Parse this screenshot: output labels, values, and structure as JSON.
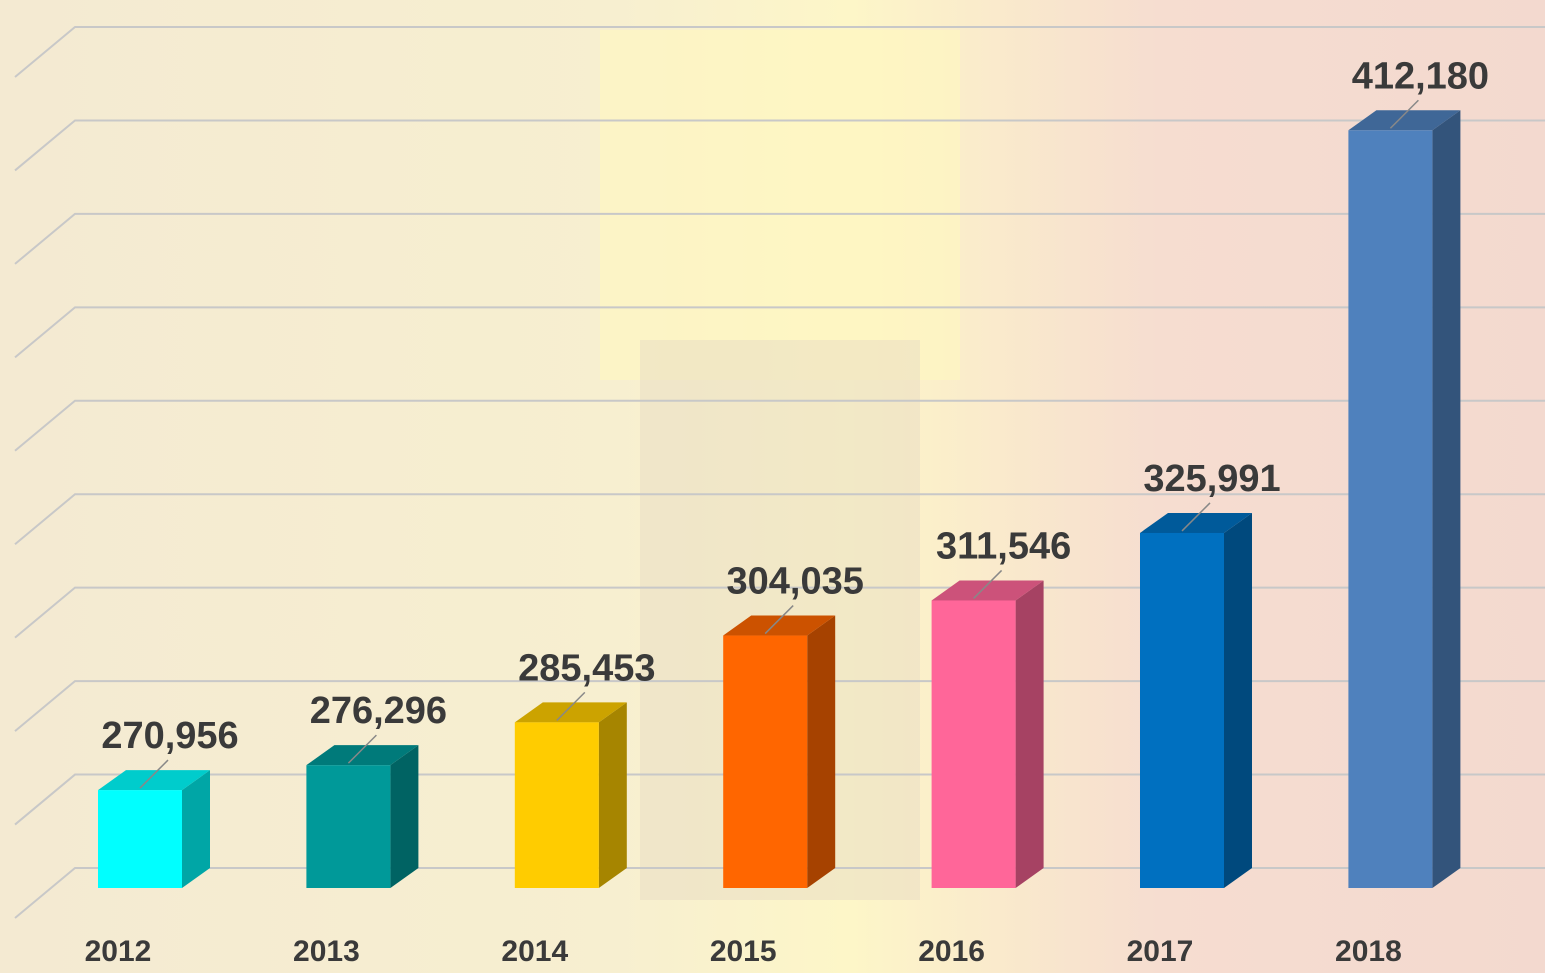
{
  "chart_data": {
    "type": "bar3d",
    "categories": [
      "2012",
      "2013",
      "2014",
      "2015",
      "2016",
      "2017",
      "2018"
    ],
    "values": [
      270956,
      276296,
      285453,
      304035,
      311546,
      325991,
      412180
    ],
    "value_labels": [
      "270,956",
      "276,296",
      "285,453",
      "304,035",
      "311,546",
      "325,991",
      "412,180"
    ],
    "colors": [
      "#00ffff",
      "#009999",
      "#ffcc00",
      "#ff6600",
      "#ff6699",
      "#0070c0",
      "#4f81bd"
    ],
    "ylim": [
      250000,
      430000
    ],
    "yticks": [
      250000,
      270000,
      290000,
      310000,
      330000,
      350000,
      370000,
      390000,
      410000,
      430000
    ],
    "grid": true
  }
}
